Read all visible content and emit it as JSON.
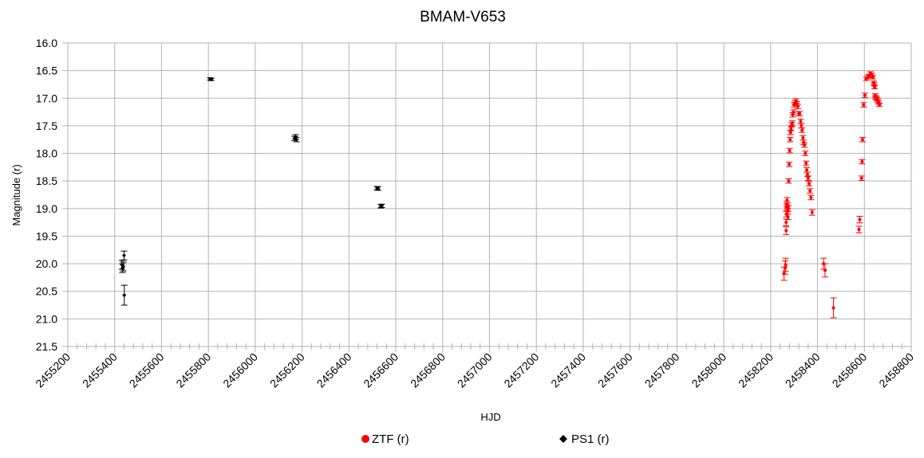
{
  "chart_data": {
    "type": "scatter",
    "title": "BMAM-V653",
    "xlabel": "HJD",
    "ylabel": "Magnitude (r)",
    "xlim": [
      2455200,
      2458800
    ],
    "ylim": [
      16.0,
      21.5
    ],
    "y_inverted": true,
    "x_ticks": [
      "2455200",
      "2455400",
      "2455600",
      "2455800",
      "2456000",
      "2456200",
      "2456400",
      "2456600",
      "2456800",
      "2457000",
      "2457200",
      "2457400",
      "2457600",
      "2457800",
      "2458000",
      "2458200",
      "2458400",
      "2458600",
      "2458800"
    ],
    "y_ticks": [
      "16.0",
      "16.5",
      "17.0",
      "17.5",
      "18.0",
      "18.5",
      "19.0",
      "19.5",
      "20.0",
      "20.5",
      "21.0",
      "21.5"
    ],
    "grid": true,
    "legend_position": "bottom",
    "series": [
      {
        "name": "ZTF (r)",
        "color": "#ff0000",
        "marker": "circle",
        "points": [
          [
            2458257,
            20.18,
            0.12
          ],
          [
            2458262,
            20.07,
            0.12
          ],
          [
            2458264,
            20.02,
            0.12
          ],
          [
            2458266,
            19.4,
            0.07
          ],
          [
            2458266,
            19.25,
            0.06
          ],
          [
            2458267,
            19.1,
            0.05
          ],
          [
            2458268,
            18.98,
            0.05
          ],
          [
            2458269,
            18.92,
            0.05
          ],
          [
            2458270,
            18.85,
            0.05
          ],
          [
            2458272,
            18.95,
            0.05
          ],
          [
            2458273,
            19.05,
            0.05
          ],
          [
            2458274,
            19.15,
            0.05
          ],
          [
            2458275,
            19.0,
            0.05
          ],
          [
            2458277,
            18.5,
            0.04
          ],
          [
            2458279,
            18.2,
            0.04
          ],
          [
            2458281,
            17.95,
            0.04
          ],
          [
            2458283,
            17.75,
            0.04
          ],
          [
            2458285,
            17.62,
            0.04
          ],
          [
            2458287,
            17.55,
            0.04
          ],
          [
            2458290,
            17.48,
            0.04
          ],
          [
            2458292,
            17.45,
            0.04
          ],
          [
            2458294,
            17.3,
            0.04
          ],
          [
            2458297,
            17.25,
            0.04
          ],
          [
            2458300,
            17.12,
            0.04
          ],
          [
            2458304,
            17.08,
            0.04
          ],
          [
            2458308,
            17.05,
            0.04
          ],
          [
            2458312,
            17.1,
            0.04
          ],
          [
            2458316,
            17.15,
            0.04
          ],
          [
            2458320,
            17.28,
            0.04
          ],
          [
            2458324,
            17.28,
            0.04
          ],
          [
            2458328,
            17.42,
            0.04
          ],
          [
            2458331,
            17.5,
            0.04
          ],
          [
            2458334,
            17.58,
            0.04
          ],
          [
            2458338,
            17.72,
            0.04
          ],
          [
            2458341,
            17.8,
            0.04
          ],
          [
            2458344,
            17.85,
            0.04
          ],
          [
            2458348,
            18.0,
            0.04
          ],
          [
            2458351,
            18.18,
            0.04
          ],
          [
            2458354,
            18.3,
            0.04
          ],
          [
            2458357,
            18.38,
            0.04
          ],
          [
            2458360,
            18.45,
            0.04
          ],
          [
            2458364,
            18.55,
            0.04
          ],
          [
            2458368,
            18.68,
            0.04
          ],
          [
            2458372,
            18.8,
            0.04
          ],
          [
            2458377,
            19.07,
            0.05
          ],
          [
            2458426,
            20.0,
            0.1
          ],
          [
            2458432,
            20.12,
            0.12
          ],
          [
            2458468,
            20.8,
            0.18
          ],
          [
            2458577,
            19.38,
            0.06
          ],
          [
            2458580,
            19.2,
            0.06
          ],
          [
            2458588,
            18.45,
            0.04
          ],
          [
            2458590,
            18.15,
            0.04
          ],
          [
            2458592,
            17.75,
            0.04
          ],
          [
            2458597,
            17.12,
            0.04
          ],
          [
            2458602,
            16.95,
            0.04
          ],
          [
            2458608,
            16.65,
            0.03
          ],
          [
            2458614,
            16.62,
            0.03
          ],
          [
            2458620,
            16.6,
            0.03
          ],
          [
            2458626,
            16.55,
            0.03
          ],
          [
            2458632,
            16.58,
            0.03
          ],
          [
            2458636,
            16.62,
            0.03
          ],
          [
            2458640,
            16.72,
            0.03
          ],
          [
            2458642,
            16.75,
            0.03
          ],
          [
            2458644,
            16.8,
            0.03
          ],
          [
            2458646,
            16.95,
            0.03
          ],
          [
            2458648,
            16.98,
            0.03
          ],
          [
            2458651,
            17.0,
            0.03
          ],
          [
            2458654,
            17.02,
            0.03
          ],
          [
            2458657,
            17.05,
            0.03
          ],
          [
            2458661,
            17.08,
            0.03
          ],
          [
            2458664,
            17.12,
            0.03
          ]
        ]
      },
      {
        "name": "PS1 (r)",
        "color": "#000000",
        "marker": "diamond",
        "points": [
          [
            2455431,
            20.02,
            0.08
          ],
          [
            2455433,
            20.08,
            0.08
          ],
          [
            2455437,
            20.05,
            0.08
          ],
          [
            2455440,
            19.85,
            0.08
          ],
          [
            2455441,
            20.57,
            0.18
          ],
          [
            2455808,
            16.65,
            0.02
          ],
          [
            2455812,
            16.66,
            0.02
          ],
          [
            2456168,
            17.73,
            0.04
          ],
          [
            2456172,
            17.7,
            0.04
          ],
          [
            2456176,
            17.75,
            0.04
          ],
          [
            2456520,
            18.63,
            0.03
          ],
          [
            2456524,
            18.64,
            0.03
          ],
          [
            2456536,
            18.96,
            0.03
          ],
          [
            2456540,
            18.95,
            0.03
          ]
        ]
      }
    ]
  }
}
